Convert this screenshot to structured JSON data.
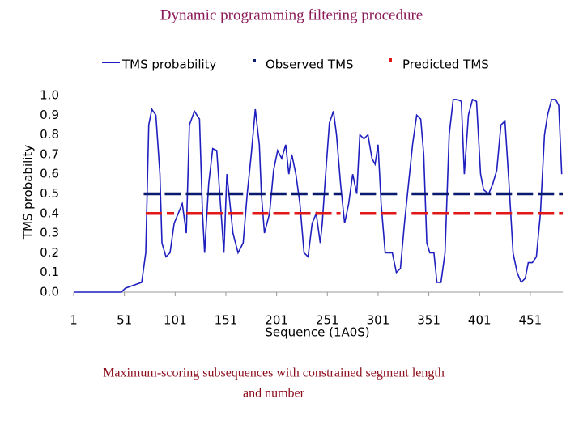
{
  "chart_data": {
    "type": "line",
    "title": "Dynamic programming filtering procedure",
    "x_label": "Sequence (1A0S)",
    "y_label": "TMS probability",
    "caption": [
      "Maximum-scoring subsequences with constrained segment length",
      "and number"
    ],
    "xlim": [
      1,
      483
    ],
    "xticks": [
      1,
      51,
      101,
      151,
      201,
      251,
      301,
      351,
      401,
      451
    ],
    "ylim": [
      0,
      1
    ],
    "yticks": [
      {
        "value": 0,
        "label": "0.0"
      },
      0.1,
      0.2,
      0.3,
      0.4,
      0.5,
      0.6,
      0.7,
      0.8,
      0.9,
      {
        "value": 1,
        "label": "1.0"
      }
    ],
    "x": [
      1,
      48,
      52,
      68,
      72,
      75,
      78,
      82,
      86,
      88,
      92,
      96,
      100,
      104,
      108,
      112,
      115,
      120,
      125,
      128,
      130,
      134,
      138,
      142,
      145,
      149,
      152,
      155,
      158,
      163,
      168,
      172,
      176,
      180,
      184,
      186,
      189,
      194,
      198,
      202,
      206,
      210,
      213,
      216,
      220,
      224,
      228,
      232,
      236,
      240,
      244,
      246,
      249,
      253,
      257,
      260,
      264,
      268,
      272,
      276,
      280,
      283,
      287,
      291,
      295,
      298,
      301,
      304,
      308,
      311,
      315,
      319,
      323,
      327,
      331,
      335,
      339,
      343,
      346,
      349,
      352,
      356,
      359,
      363,
      367,
      371,
      375,
      379,
      383,
      386,
      390,
      394,
      398,
      402,
      405,
      410,
      414,
      418,
      422,
      426,
      430,
      434,
      438,
      442,
      446,
      449,
      453,
      457,
      461,
      465,
      468,
      472,
      476,
      479,
      482
    ],
    "series": [
      {
        "name": "TMS probability",
        "color": "#1f1fbf",
        "values": [
          0,
          0,
          0.02,
          0.05,
          0.2,
          0.85,
          0.93,
          0.9,
          0.6,
          0.25,
          0.18,
          0.2,
          0.35,
          0.4,
          0.45,
          0.3,
          0.85,
          0.92,
          0.88,
          0.4,
          0.2,
          0.55,
          0.73,
          0.72,
          0.5,
          0.2,
          0.6,
          0.45,
          0.3,
          0.2,
          0.25,
          0.5,
          0.7,
          0.93,
          0.75,
          0.5,
          0.3,
          0.4,
          0.62,
          0.72,
          0.68,
          0.75,
          0.6,
          0.7,
          0.6,
          0.45,
          0.2,
          0.18,
          0.35,
          0.4,
          0.25,
          0.35,
          0.58,
          0.86,
          0.92,
          0.8,
          0.55,
          0.35,
          0.45,
          0.6,
          0.5,
          0.8,
          0.78,
          0.8,
          0.68,
          0.65,
          0.75,
          0.45,
          0.2,
          0.2,
          0.2,
          0.1,
          0.12,
          0.35,
          0.55,
          0.75,
          0.9,
          0.88,
          0.7,
          0.25,
          0.2,
          0.2,
          0.05,
          0.05,
          0.2,
          0.8,
          0.98,
          0.98,
          0.97,
          0.6,
          0.9,
          0.98,
          0.97,
          0.6,
          0.52,
          0.5,
          0.55,
          0.62,
          0.85,
          0.87,
          0.55,
          0.2,
          0.1,
          0.05,
          0.07,
          0.15,
          0.15,
          0.18,
          0.4,
          0.8,
          0.9,
          0.98,
          0.98,
          0.95,
          0.6
        ]
      }
    ],
    "segment_series": [
      {
        "name": "Observed TMS",
        "color": "#0a1a6e",
        "value": 0.5,
        "segments": [
          [
            70,
            168
          ],
          [
            174,
            265
          ],
          [
            283,
            321
          ],
          [
            334,
            483
          ]
        ]
      },
      {
        "name": "Predicted TMS",
        "color": "#e01818",
        "value": 0.4,
        "segments": [
          [
            72,
            100
          ],
          [
            112,
            168
          ],
          [
            177,
            264
          ],
          [
            283,
            319
          ],
          [
            334,
            483
          ]
        ]
      }
    ]
  }
}
